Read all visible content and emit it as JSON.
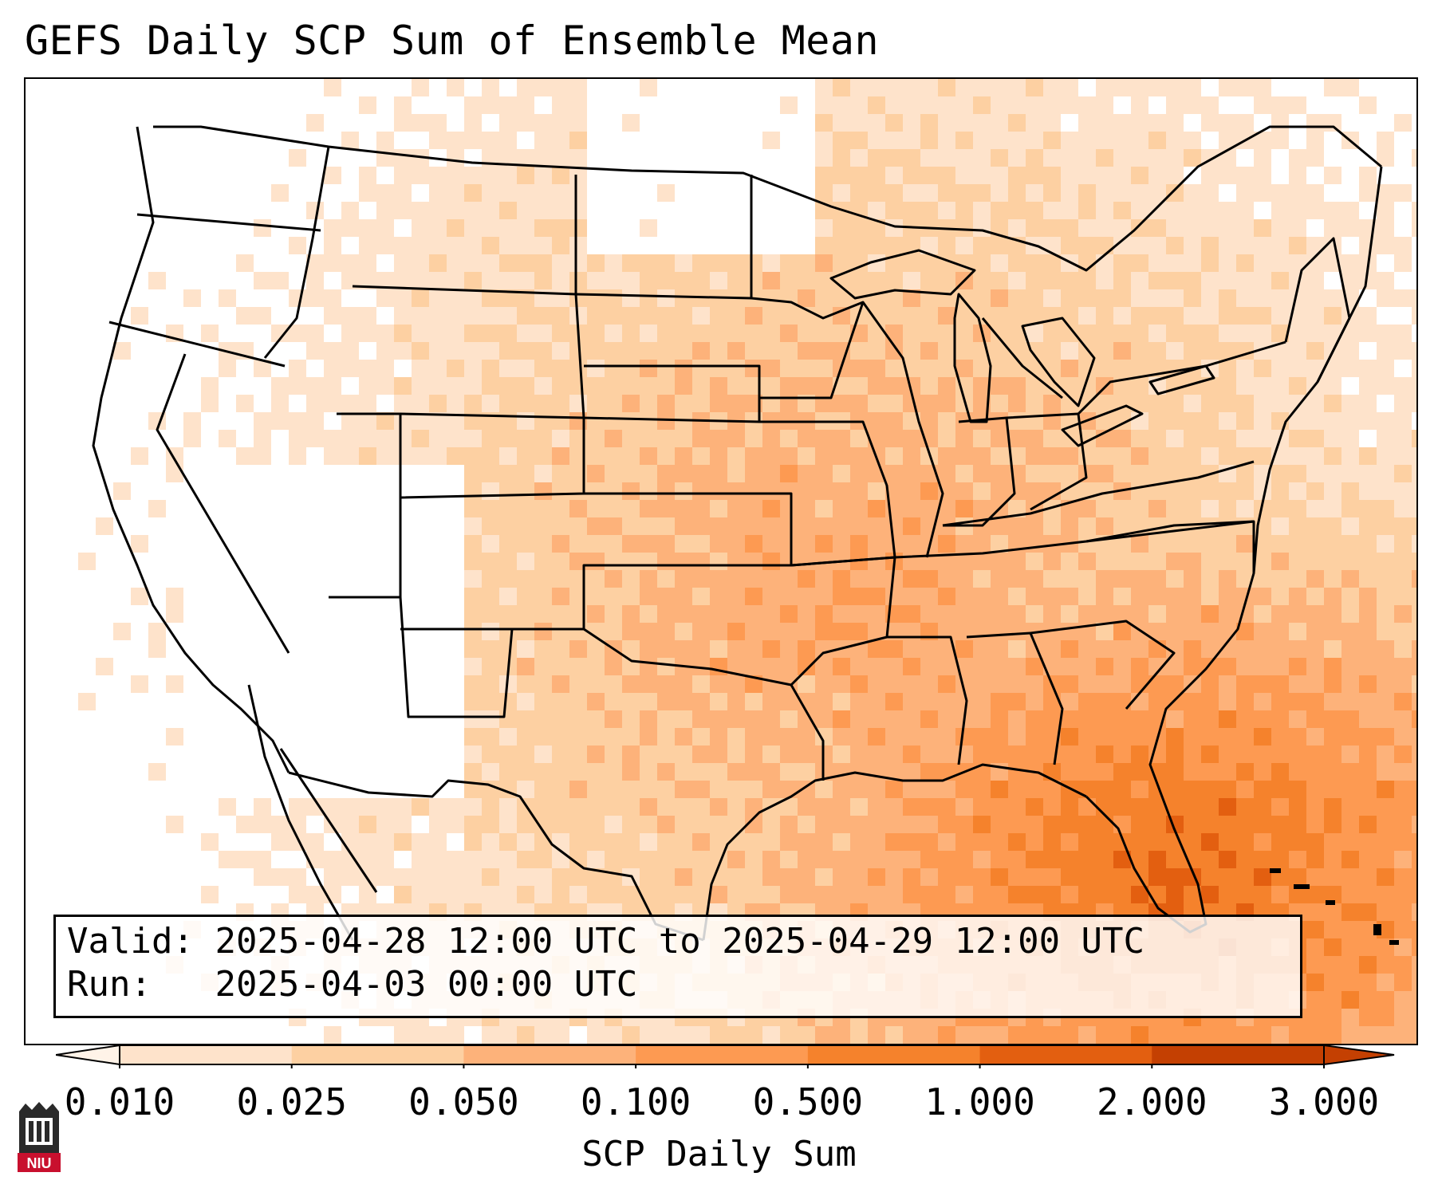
{
  "title": "GEFS Daily SCP Sum of Ensemble Mean",
  "info": {
    "valid_label": "Valid:",
    "valid_value": "2025-04-28 12:00 UTC to 2025-04-29 12:00 UTC",
    "run_label": "Run:",
    "run_value": "2025-04-03 00:00 UTC"
  },
  "colorbar": {
    "label": "SCP Daily Sum",
    "ticks": [
      "0.010",
      "0.025",
      "0.050",
      "0.100",
      "0.500",
      "1.000",
      "2.000",
      "3.000"
    ],
    "colors": [
      "#fff3e8",
      "#fee3cb",
      "#fdd0a2",
      "#fdb27a",
      "#fd9a52",
      "#f5822c",
      "#e35f10",
      "#c44002"
    ],
    "extend": "both"
  },
  "map": {
    "region": "Continental United States",
    "field": "SCP daily sum",
    "basemap_colors": {
      "land_fill": "#ffffff",
      "border": "#000000"
    }
  },
  "logo": {
    "text": "NIU",
    "icon": "university-building-icon",
    "color": "#c8102e"
  }
}
